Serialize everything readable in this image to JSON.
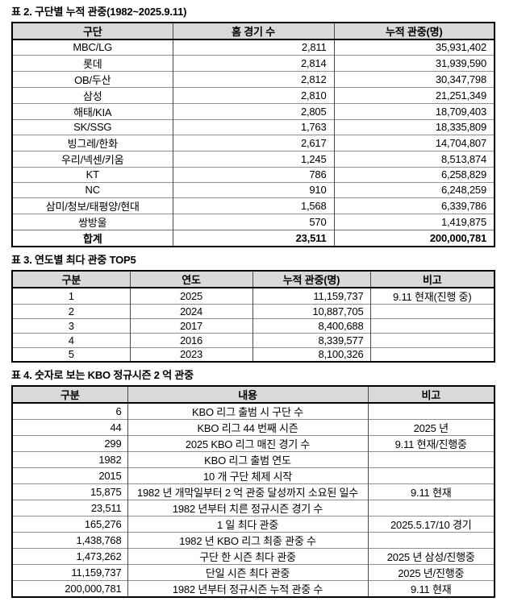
{
  "doc": {
    "colors": {
      "header_bg": "#d9d9d9",
      "outer_border": "#000000",
      "inner_hline": "#909090",
      "inner_vline": "#4a4a4a",
      "text": "#000000"
    },
    "sections": [
      {
        "title": "표 2. 구단별 누적 관중(1982~2025.9.11)",
        "headers": [
          "구단",
          "홈 경기 수",
          "누적 관중(명)"
        ],
        "rows": [
          [
            "MBC/LG",
            "2,811",
            "35,931,402"
          ],
          [
            "롯데",
            "2,814",
            "31,939,590"
          ],
          [
            "OB/두산",
            "2,812",
            "30,347,798"
          ],
          [
            "삼성",
            "2,810",
            "21,251,349"
          ],
          [
            "해태/KIA",
            "2,805",
            "18,709,403"
          ],
          [
            "SK/SSG",
            "1,763",
            "18,335,809"
          ],
          [
            "빙그레/한화",
            "2,617",
            "14,704,807"
          ],
          [
            "우리/넥센/키움",
            "1,245",
            "8,513,874"
          ],
          [
            "KT",
            "786",
            "6,258,829"
          ],
          [
            "NC",
            "910",
            "6,248,259"
          ],
          [
            "삼미/청보/태평양/현대",
            "1,568",
            "6,339,786"
          ],
          [
            "쌍방울",
            "570",
            "1,419,875"
          ]
        ],
        "total_row": [
          "합계",
          "23,511",
          "200,000,781"
        ]
      },
      {
        "title": "표 3. 연도별 최다 관중 TOP5",
        "headers": [
          "구분",
          "연도",
          "누적 관중(명)",
          "비고"
        ],
        "rows": [
          [
            "1",
            "2025",
            "11,159,737",
            "9.11 현재(진행 중)"
          ],
          [
            "2",
            "2024",
            "10,887,705",
            ""
          ],
          [
            "3",
            "2017",
            "8,400,688",
            ""
          ],
          [
            "4",
            "2016",
            "8,339,577",
            ""
          ],
          [
            "5",
            "2023",
            "8,100,326",
            ""
          ]
        ]
      },
      {
        "title": "표 4. 숫자로 보는 KBO 정규시즌 2 억 관중",
        "headers": [
          "구분",
          "내용",
          "비고"
        ],
        "rows": [
          [
            "6",
            "KBO 리그 출범 시 구단 수",
            ""
          ],
          [
            "44",
            "KBO 리그 44 번째 시즌",
            "2025 년"
          ],
          [
            "299",
            "2025 KBO 리그 매진 경기 수",
            "9.11 현재/진행중"
          ],
          [
            "1982",
            "KBO 리그 출범 연도",
            ""
          ],
          [
            "2015",
            "10 개 구단 체제 시작",
            ""
          ],
          [
            "15,875",
            "1982 년 개막일부터 2 억 관중 달성까지 소요된 일수",
            "9.11 현재"
          ],
          [
            "23,511",
            "1982 년부터 치른 정규시즌 경기 수",
            ""
          ],
          [
            "165,276",
            "1 일 최다 관중",
            "2025.5.17/10 경기"
          ],
          [
            "1,438,768",
            "1982 년 KBO 리그 최종 관중 수",
            ""
          ],
          [
            "1,473,262",
            "구단 한 시즌 최다 관중",
            "2025 년 삼성/진행중"
          ],
          [
            "11,159,737",
            "단일 시즌 최다 관중",
            "2025 년/진행중"
          ],
          [
            "200,000,781",
            "1982 년부터 정규시즌 누적 관중 수",
            "9.11 현재"
          ]
        ]
      }
    ]
  }
}
